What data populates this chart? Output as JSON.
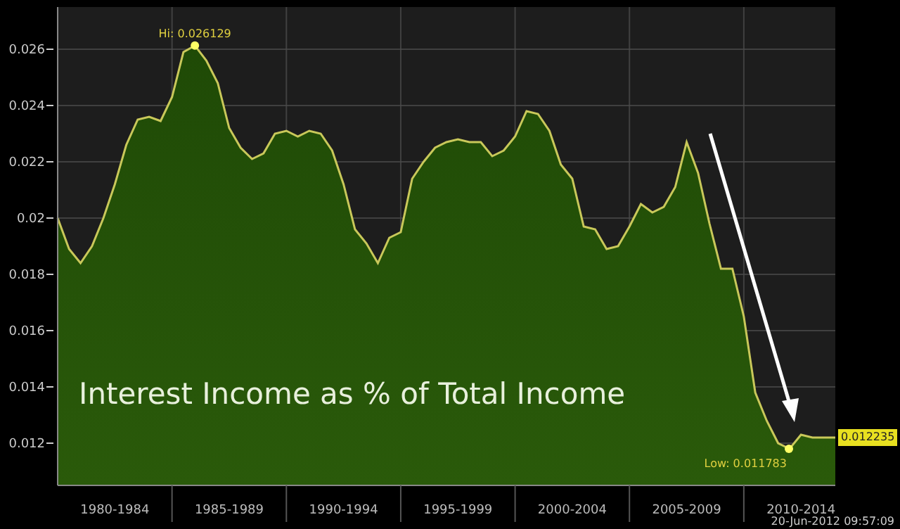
{
  "chart_data": {
    "type": "area",
    "title": "Interest Income as % of Total Income",
    "categories": [
      null,
      null,
      null,
      null,
      null,
      "1980-1984",
      null,
      null,
      null,
      null,
      null,
      null,
      null,
      null,
      null,
      "1985-1989",
      null,
      null,
      null,
      null,
      null,
      null,
      null,
      null,
      null,
      "1990-1994",
      null,
      null,
      null,
      null,
      null,
      null,
      null,
      null,
      null,
      "1995-1999",
      null,
      null,
      null,
      null,
      null,
      null,
      null,
      null,
      null,
      "2000-2004",
      null,
      null,
      null,
      null,
      null,
      null,
      null,
      null,
      null,
      "2005-2009",
      null,
      null,
      null,
      null,
      null,
      null,
      null,
      null,
      null,
      "2010-2014",
      null,
      null,
      null
    ],
    "series": [
      {
        "color": "#c9c85a",
        "values": [
          0.02,
          0.0189,
          0.0184,
          0.019,
          0.02,
          0.0212,
          0.0226,
          0.0235,
          0.0236,
          0.02345,
          0.0243,
          0.0259,
          0.026129,
          0.0256,
          0.0248,
          0.0232,
          0.0225,
          0.0221,
          0.0223,
          0.023,
          0.0231,
          0.0229,
          0.0231,
          0.023,
          0.0224,
          0.0212,
          0.0196,
          0.0191,
          0.0184,
          0.0193,
          0.0195,
          0.0214,
          0.022,
          0.0225,
          0.0227,
          0.0228,
          0.0227,
          0.0227,
          0.0222,
          0.0224,
          0.0229,
          0.0238,
          0.0237,
          0.0231,
          0.0219,
          0.0214,
          0.0197,
          0.0196,
          0.0189,
          0.019,
          0.0197,
          0.0205,
          0.0202,
          0.0204,
          0.0211,
          0.0227,
          0.0216,
          0.0198,
          0.0182,
          0.0182,
          0.0165,
          0.0138,
          0.0128,
          0.012,
          0.0118,
          0.0123,
          0.0122,
          0.0122,
          0.0122
        ]
      }
    ],
    "ylim": [
      0.0105,
      0.0275
    ],
    "yticks": [
      0.012,
      0.014,
      0.016,
      0.018,
      0.02,
      0.022,
      0.024,
      0.026
    ],
    "grid": true,
    "annotations": [
      {
        "text": "Hi: 0.026129",
        "y": 0.026129
      },
      "Low: 0.011783",
      "0.012235",
      "20-Jun-2012 09:57:09"
    ]
  }
}
